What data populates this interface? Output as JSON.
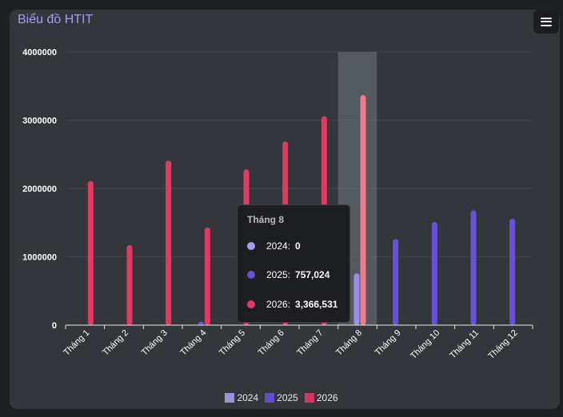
{
  "header": {
    "title": "Biểu đồ HTIT",
    "menu_icon": "hamburger-menu-icon"
  },
  "chart_data": {
    "type": "bar",
    "title": "Biểu đồ HTIT",
    "categories": [
      "Tháng 1",
      "Tháng 2",
      "Tháng 3",
      "Tháng 4",
      "Tháng 5",
      "Tháng 6",
      "Tháng 7",
      "Tháng 8",
      "Tháng 9",
      "Tháng 10",
      "Tháng 11",
      "Tháng 12"
    ],
    "series": [
      {
        "name": "2024",
        "color": "#a59de8",
        "values": [
          0,
          0,
          0,
          0,
          0,
          0,
          0,
          0,
          0,
          0,
          0,
          0
        ]
      },
      {
        "name": "2025",
        "color": "#6a4fdc",
        "values": [
          0,
          0,
          0,
          50000,
          0,
          0,
          0,
          757024,
          1260000,
          1510000,
          1680000,
          1560000
        ]
      },
      {
        "name": "2026",
        "color": "#e23a63",
        "values": [
          2110000,
          1170000,
          2410000,
          1430000,
          2280000,
          2690000,
          3060000,
          3366531,
          0,
          0,
          0,
          0
        ]
      }
    ],
    "ylim": [
      0,
      4000000
    ],
    "yticks": [
      "0",
      "1000000",
      "2000000",
      "3000000",
      "4000000"
    ],
    "grid": true,
    "legend_position": "bottom",
    "highlighted_category": "Tháng 8"
  },
  "tooltip": {
    "title": "Tháng 8",
    "rows": [
      {
        "label": "2024:",
        "value": "0",
        "color": "#a59de8"
      },
      {
        "label": "2025:",
        "value": "757,024",
        "color": "#6a4fdc"
      },
      {
        "label": "2026:",
        "value": "3,366,531",
        "color": "#e23a63"
      }
    ]
  }
}
